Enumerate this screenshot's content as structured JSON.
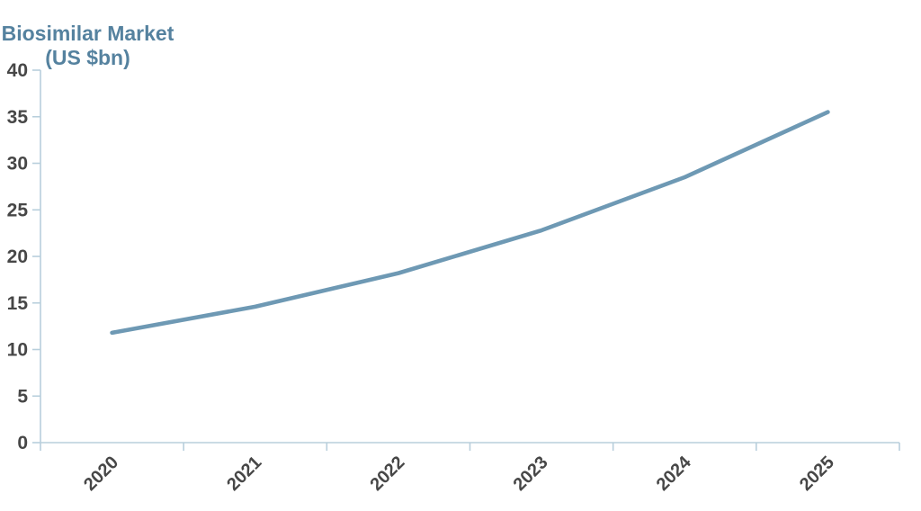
{
  "chart_data": {
    "type": "line",
    "title": "Biosimilar Market",
    "subtitle": "(US $bn)",
    "xlabel": "",
    "ylabel": "",
    "categories": [
      "2020",
      "2021",
      "2022",
      "2023",
      "2024",
      "2025"
    ],
    "series": [
      {
        "name": "Biosimilar Market (US $bn)",
        "values": [
          11.8,
          14.6,
          18.2,
          22.8,
          28.5,
          35.5
        ]
      }
    ],
    "ylim": [
      0,
      40
    ],
    "yticks": [
      0,
      5,
      10,
      15,
      20,
      25,
      30,
      35,
      40
    ],
    "grid": false,
    "legend": "none",
    "colors": {
      "line": "#6e99b4",
      "axis": "#b8cfdc",
      "tick_label": "#474747",
      "title": "#55829f"
    }
  }
}
